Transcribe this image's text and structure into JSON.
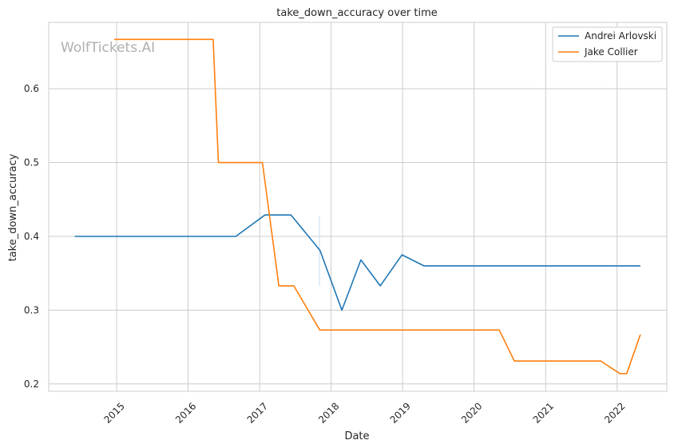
{
  "chart_data": {
    "type": "line",
    "title": "take_down_accuracy over time",
    "xlabel": "Date",
    "ylabel": "take_down_accuracy",
    "watermark": "WolfTickets.AI",
    "x_ticks": [
      "2015",
      "2016",
      "2017",
      "2018",
      "2019",
      "2020",
      "2021",
      "2022"
    ],
    "y_ticks": [
      "0.2",
      "0.3",
      "0.4",
      "0.5",
      "0.6"
    ],
    "xlim": [
      "2014-01-19",
      "2022-09-12"
    ],
    "ylim": [
      0.19,
      0.69
    ],
    "grid": true,
    "legend_position": "top-right",
    "colors": {
      "Andrei Arlovski": "#1f77b4",
      "Jake Collier": "#ff7f0e"
    },
    "series": [
      {
        "name": "Andrei Arlovski",
        "color": "#1f77b4",
        "x": [
          "2014-06-01",
          "2016-09-01",
          "2017-01-28",
          "2017-06-10",
          "2017-11-05",
          "2018-02-25",
          "2018-06-02",
          "2018-09-09",
          "2018-12-29",
          "2019-04-20",
          "2022-04-30"
        ],
        "y": [
          0.4,
          0.4,
          0.429,
          0.429,
          0.381,
          0.3,
          0.368,
          0.333,
          0.375,
          0.36,
          0.36
        ]
      },
      {
        "name": "Jake Collier",
        "color": "#ff7f0e",
        "x": [
          "2014-12-20",
          "2016-05-08",
          "2016-06-04",
          "2017-01-15",
          "2017-04-09",
          "2017-06-24",
          "2017-11-04",
          "2020-05-09",
          "2020-07-25",
          "2021-10-09",
          "2022-01-15",
          "2022-02-19",
          "2022-04-30"
        ],
        "y": [
          0.667,
          0.667,
          0.5,
          0.5,
          0.333,
          0.333,
          0.273,
          0.273,
          0.231,
          0.231,
          0.214,
          0.214,
          0.267
        ]
      }
    ]
  }
}
